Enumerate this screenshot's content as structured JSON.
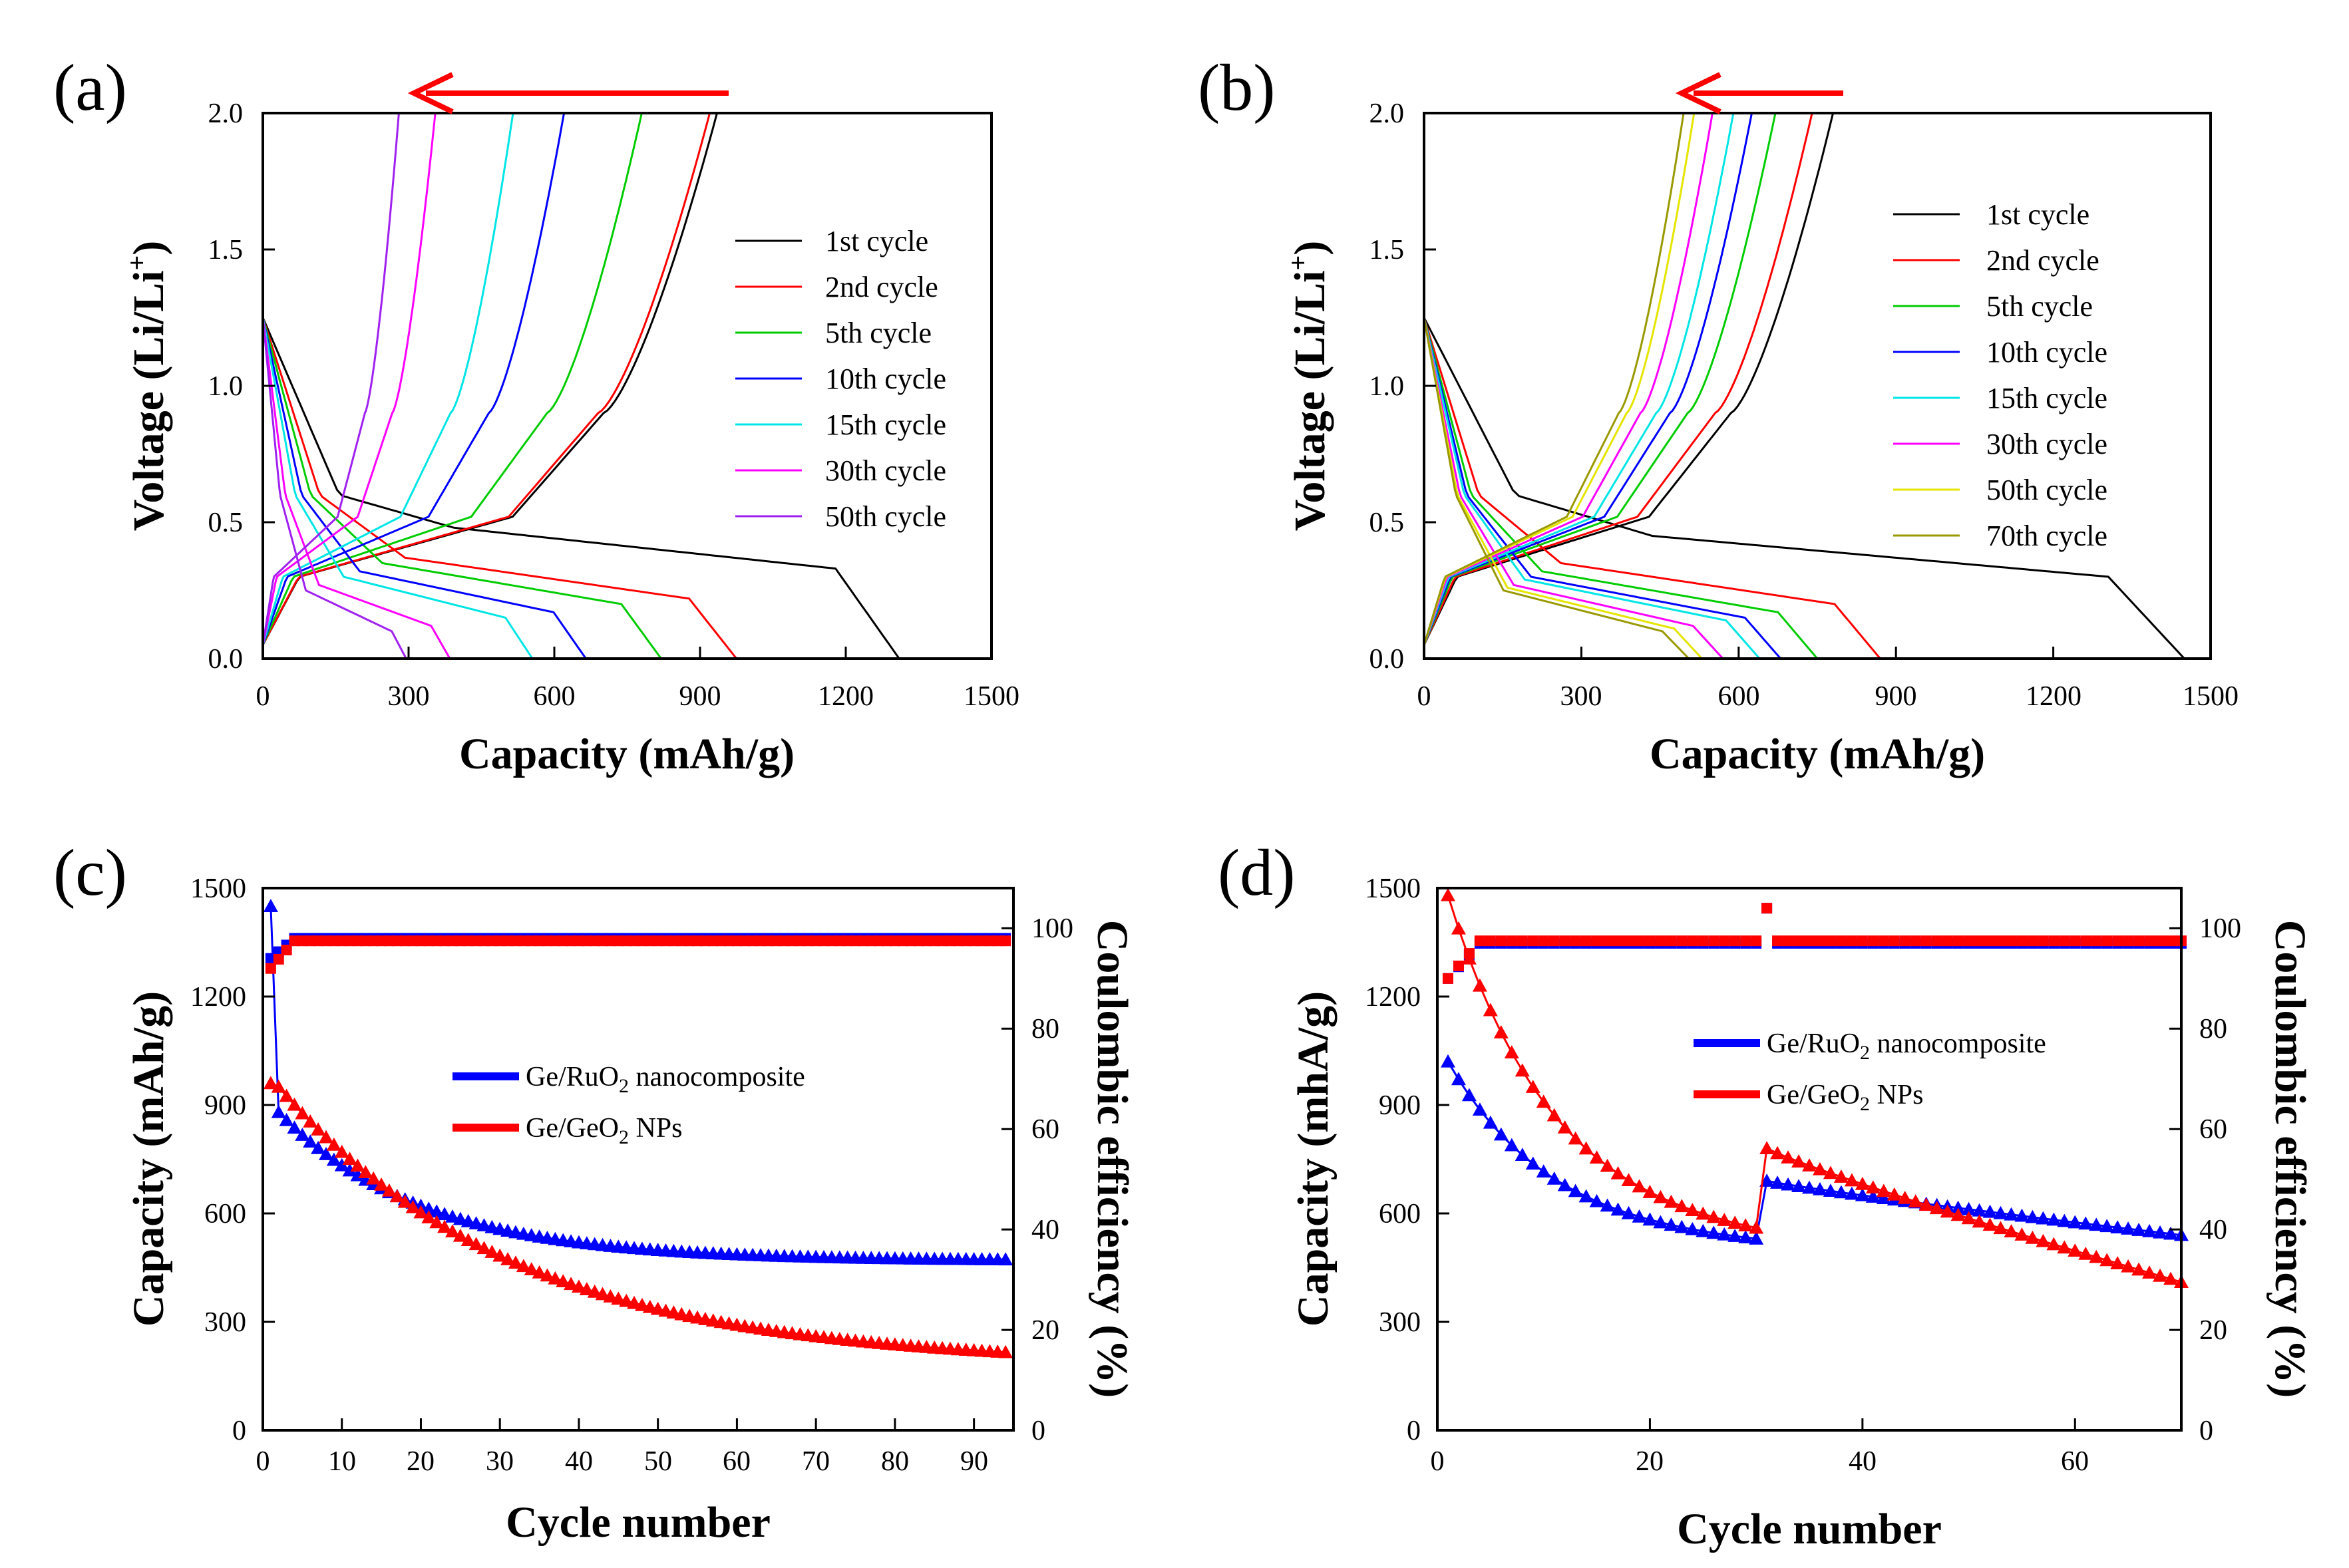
{
  "chart_data": [
    {
      "type": "line",
      "panel_label": "(a)",
      "xlabel": "Capacity (mAh/g)",
      "ylabel_main": "Voltage (Li/Li",
      "ylabel_sup": "+",
      "ylabel_tail": ")",
      "xlim": [
        0,
        1500
      ],
      "ylim": [
        0,
        2.0
      ],
      "xticks": [
        "0",
        "300",
        "600",
        "900",
        "1200",
        "1500"
      ],
      "yticks": [
        "0.0",
        "0.5",
        "1.0",
        "1.5",
        "2.0"
      ],
      "legend_position": "right",
      "arrow_direction": "left",
      "arrow_color": "#ff0000",
      "series": [
        {
          "name": "1st cycle",
          "color": "#000000",
          "discharge_end": 1310,
          "charge_end": 935,
          "plateau": 0.33
        },
        {
          "name": "2nd cycle",
          "color": "#ff0000",
          "discharge_end": 975,
          "charge_end": 920,
          "plateau": 0.22
        },
        {
          "name": "5th cycle",
          "color": "#00cc00",
          "discharge_end": 820,
          "charge_end": 780,
          "plateau": 0.2
        },
        {
          "name": "10th cycle",
          "color": "#0000ff",
          "discharge_end": 665,
          "charge_end": 620,
          "plateau": 0.17
        },
        {
          "name": "15th cycle",
          "color": "#00e5e5",
          "discharge_end": 555,
          "charge_end": 515,
          "plateau": 0.15
        },
        {
          "name": "30th cycle",
          "color": "#ff00ff",
          "discharge_end": 385,
          "charge_end": 355,
          "plateau": 0.12
        },
        {
          "name": "50th cycle",
          "color": "#a020f0",
          "discharge_end": 295,
          "charge_end": 280,
          "plateau": 0.1
        }
      ]
    },
    {
      "type": "line",
      "panel_label": "(b)",
      "xlabel": "Capacity (mAh/g)",
      "ylabel_main": "Voltage (Li/Li",
      "ylabel_sup": "+",
      "ylabel_tail": ")",
      "xlim": [
        0,
        1500
      ],
      "ylim": [
        0,
        2.0
      ],
      "xticks": [
        "0",
        "300",
        "600",
        "900",
        "1200",
        "1500"
      ],
      "yticks": [
        "0.0",
        "0.5",
        "1.0",
        "1.5",
        "2.0"
      ],
      "legend_position": "right",
      "arrow_direction": "left",
      "arrow_color": "#ff0000",
      "series": [
        {
          "name": "1st cycle",
          "color": "#000000",
          "discharge_end": 1450,
          "charge_end": 780,
          "plateau": 0.3
        },
        {
          "name": "2nd cycle",
          "color": "#ff0000",
          "discharge_end": 870,
          "charge_end": 740,
          "plateau": 0.2
        },
        {
          "name": "5th cycle",
          "color": "#00cc00",
          "discharge_end": 750,
          "charge_end": 670,
          "plateau": 0.17
        },
        {
          "name": "10th cycle",
          "color": "#0000ff",
          "discharge_end": 680,
          "charge_end": 625,
          "plateau": 0.15
        },
        {
          "name": "15th cycle",
          "color": "#00e5e5",
          "discharge_end": 640,
          "charge_end": 590,
          "plateau": 0.14
        },
        {
          "name": "30th cycle",
          "color": "#ff00ff",
          "discharge_end": 570,
          "charge_end": 550,
          "plateau": 0.12
        },
        {
          "name": "50th cycle",
          "color": "#e5e500",
          "discharge_end": 530,
          "charge_end": 515,
          "plateau": 0.11
        },
        {
          "name": "70th cycle",
          "color": "#999900",
          "discharge_end": 505,
          "charge_end": 495,
          "plateau": 0.1
        }
      ]
    },
    {
      "type": "scatter",
      "panel_label": "(c)",
      "xlabel": "Cycle number",
      "ylabel": "Capacity (mAh/g)",
      "y2label": "Coulombic efficiency (%)",
      "xlim": [
        0,
        95
      ],
      "ylim": [
        0,
        1500
      ],
      "y2lim": [
        0,
        108
      ],
      "xticks": [
        "0",
        "10",
        "20",
        "30",
        "40",
        "50",
        "60",
        "70",
        "80",
        "90"
      ],
      "yticks": [
        "0",
        "300",
        "600",
        "900",
        "1200",
        "1500"
      ],
      "y2ticks": [
        "0",
        "20",
        "40",
        "60",
        "80",
        "100"
      ],
      "legend_position": "center",
      "series": [
        {
          "name_main": "Ge/RuO",
          "name_sub": "2",
          "name_tail": " nanocomposite",
          "color": "#0000ff",
          "n_cycles": 94,
          "start": 1450,
          "second": 880,
          "final": 470,
          "decay": 18,
          "ce_start": 94,
          "ce_final": 98
        },
        {
          "name_main": "Ge/GeO",
          "name_sub": "2",
          "name_tail": " NPs",
          "color": "#ff0000",
          "n_cycles": 94,
          "start": 960,
          "second": 950,
          "final": 180,
          "decay": 30,
          "ce_start": 92,
          "ce_final": 97.5
        }
      ]
    },
    {
      "type": "scatter",
      "panel_label": "(d)",
      "xlabel": "Cycle number",
      "ylabel": "Capacity (mhA/g)",
      "y2label": "Coulombic efficiency (%)",
      "xlim": [
        0,
        70
      ],
      "ylim": [
        0,
        1500
      ],
      "y2lim": [
        0,
        108
      ],
      "xticks": [
        "0",
        "20",
        "40",
        "60"
      ],
      "yticks": [
        "0",
        "300",
        "600",
        "900",
        "1200",
        "1500"
      ],
      "y2ticks": [
        "0",
        "20",
        "40",
        "60",
        "80",
        "100"
      ],
      "legend_position": "upper-right",
      "series": [
        {
          "name_main": "Ge/RuO",
          "name_sub": "2",
          "name_tail": " nanocomposite",
          "color": "#0000ff",
          "n_cycles": 70,
          "seg1_start": 1020,
          "seg1_end": 530,
          "jump_cycle": 31,
          "seg2_start": 690,
          "seg2_end": 540,
          "ce_final": 97
        },
        {
          "name_main": "Ge/GeO",
          "name_sub": "2",
          "name_tail": " NPs",
          "color": "#ff0000",
          "n_cycles": 70,
          "seg1_start": 1480,
          "seg1_end": 560,
          "jump_cycle": 31,
          "seg2_start": 780,
          "seg2_end": 410,
          "ce_final": 97.5
        }
      ]
    }
  ]
}
